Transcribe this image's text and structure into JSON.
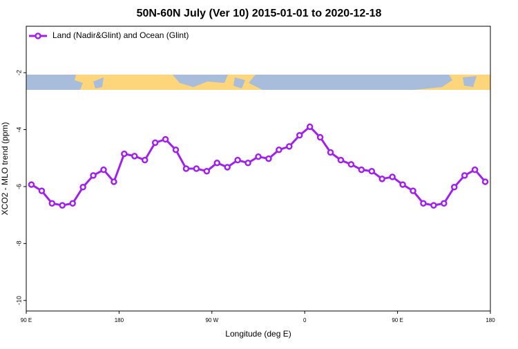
{
  "chart_data": {
    "type": "line",
    "title": "50N-60N July (Ver 10)   2015-01-01 to 2020-12-18",
    "xlabel": "Longitude (deg E)",
    "ylabel": "XCO2 - MLO trend (ppm)",
    "x": [
      95,
      105,
      115,
      125,
      135,
      145,
      155,
      165,
      175,
      185,
      195,
      205,
      215,
      225,
      235,
      245,
      255,
      265,
      275,
      285,
      295,
      305,
      315,
      325,
      335,
      345,
      355,
      365,
      375,
      385,
      395,
      405,
      415,
      425,
      435,
      445,
      455,
      465,
      475,
      485,
      495,
      505,
      515,
      525,
      535
    ],
    "series": [
      {
        "name": "Land (Nadir&Glint) and Ocean (Glint)",
        "color": "#a020f0",
        "values": [
          -5.93,
          -6.15,
          -6.59,
          -6.66,
          -6.59,
          -6.02,
          -5.61,
          -5.41,
          -5.83,
          -4.85,
          -4.93,
          -5.07,
          -4.46,
          -4.34,
          -4.71,
          -5.37,
          -5.37,
          -5.46,
          -5.17,
          -5.32,
          -5.07,
          -5.17,
          -4.95,
          -5.02,
          -4.71,
          -4.59,
          -4.2,
          -3.9,
          -4.27,
          -4.8,
          -5.07,
          -5.22,
          -5.41,
          -5.46,
          -5.73,
          -5.66,
          -5.93,
          -6.15,
          -6.59,
          -6.66,
          -6.59,
          -6.02,
          -5.61,
          -5.41,
          -5.83
        ]
      }
    ],
    "xlim": [
      90,
      540
    ],
    "xticks": [
      {
        "value": 90,
        "label": "90 E"
      },
      {
        "value": 180,
        "label": "180"
      },
      {
        "value": 270,
        "label": "90 W"
      },
      {
        "value": 360,
        "label": "0"
      },
      {
        "value": 450,
        "label": "90 E"
      },
      {
        "value": 540,
        "label": "180"
      }
    ],
    "ylim": [
      -10.37,
      -0.37
    ],
    "yticks": [
      -10,
      -8,
      -6,
      -4,
      -2
    ],
    "legend": "top-left"
  }
}
